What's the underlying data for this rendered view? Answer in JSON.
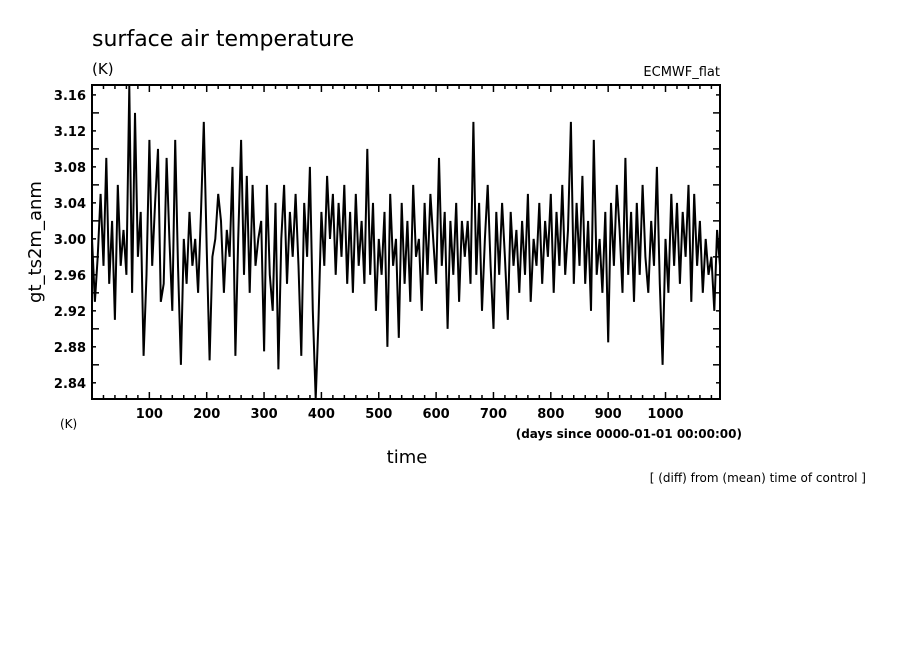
{
  "chart_data": {
    "type": "line",
    "title": "surface air temperature",
    "subtitle": "(K)",
    "experiment_label": "ECMWF_flat",
    "xlabel": "time",
    "xunits": "(days since 0000-01-01 00:00:00)",
    "ylabel": "gt_ts2m_anm",
    "yunits": "(K)",
    "footnote": "[ (diff) from (mean) time of control ]",
    "xlim": [
      0,
      1095
    ],
    "ylim": [
      2.822,
      3.171
    ],
    "xticks": [
      100,
      200,
      300,
      400,
      500,
      600,
      700,
      800,
      900,
      1000
    ],
    "xtick_labels": [
      "100",
      "200",
      "300",
      "400",
      "500",
      "600",
      "700",
      "800",
      "900",
      "1000"
    ],
    "x_minor_step": 20,
    "yticks": [
      2.84,
      2.88,
      2.92,
      2.96,
      3.0,
      3.04,
      3.08,
      3.12,
      3.16
    ],
    "ytick_labels": [
      "2.84",
      "2.88",
      "2.92",
      "2.96",
      "3.00",
      "3.04",
      "3.08",
      "3.12",
      "3.16"
    ],
    "y_minor_step": 0.02,
    "grid": false,
    "line_color": "#000000",
    "series": [
      {
        "name": "gt_ts2m_anm",
        "x_start": 0,
        "x_step": 5,
        "values": [
          3.0,
          2.93,
          2.98,
          3.05,
          2.97,
          3.09,
          2.95,
          3.02,
          2.91,
          3.06,
          2.97,
          3.01,
          2.96,
          3.17,
          2.94,
          3.14,
          2.98,
          3.03,
          2.87,
          2.96,
          3.11,
          2.97,
          3.04,
          3.1,
          2.93,
          2.95,
          3.09,
          3.0,
          2.92,
          3.11,
          2.97,
          2.86,
          3.0,
          2.95,
          3.03,
          2.97,
          3.0,
          2.94,
          3.03,
          3.13,
          2.99,
          2.865,
          2.98,
          3.0,
          3.05,
          3.02,
          2.94,
          3.01,
          2.98,
          3.08,
          2.87,
          3.0,
          3.11,
          2.96,
          3.07,
          2.94,
          3.06,
          2.97,
          3.0,
          3.02,
          2.875,
          3.06,
          2.96,
          2.92,
          3.04,
          2.855,
          3.0,
          3.06,
          2.95,
          3.03,
          2.98,
          3.05,
          2.97,
          2.87,
          3.04,
          2.98,
          3.08,
          2.92,
          2.82,
          2.91,
          3.03,
          2.97,
          3.07,
          3.0,
          3.05,
          2.96,
          3.04,
          2.98,
          3.06,
          2.95,
          3.03,
          2.94,
          3.05,
          2.97,
          3.02,
          2.95,
          3.1,
          2.96,
          3.04,
          2.92,
          3.0,
          2.96,
          3.03,
          2.88,
          3.05,
          2.97,
          3.0,
          2.89,
          3.04,
          2.95,
          3.02,
          2.93,
          3.06,
          2.98,
          3.0,
          2.92,
          3.04,
          2.96,
          3.05,
          3.0,
          2.95,
          3.09,
          2.97,
          3.03,
          2.9,
          3.02,
          2.96,
          3.04,
          2.93,
          3.02,
          2.98,
          3.02,
          2.95,
          3.13,
          2.96,
          3.04,
          2.92,
          3.0,
          3.06,
          2.97,
          2.9,
          3.03,
          2.96,
          3.04,
          2.98,
          2.91,
          3.03,
          2.97,
          3.01,
          2.94,
          3.02,
          2.96,
          3.05,
          2.93,
          3.0,
          2.97,
          3.04,
          2.95,
          3.02,
          2.98,
          3.05,
          2.94,
          3.03,
          2.97,
          3.06,
          2.96,
          3.01,
          3.13,
          2.95,
          3.04,
          2.97,
          3.07,
          2.95,
          3.02,
          2.92,
          3.11,
          2.96,
          3.0,
          2.94,
          3.03,
          2.885,
          3.04,
          2.97,
          3.06,
          3.01,
          2.94,
          3.09,
          2.96,
          3.03,
          2.93,
          3.04,
          2.96,
          3.06,
          2.98,
          2.94,
          3.02,
          2.97,
          3.08,
          2.95,
          2.86,
          3.0,
          2.94,
          3.05,
          2.97,
          3.04,
          2.95,
          3.03,
          2.98,
          3.06,
          2.93,
          3.05,
          2.97,
          3.02,
          2.94,
          3.0,
          2.96,
          2.98,
          2.92,
          3.01,
          2.97
        ]
      }
    ]
  }
}
